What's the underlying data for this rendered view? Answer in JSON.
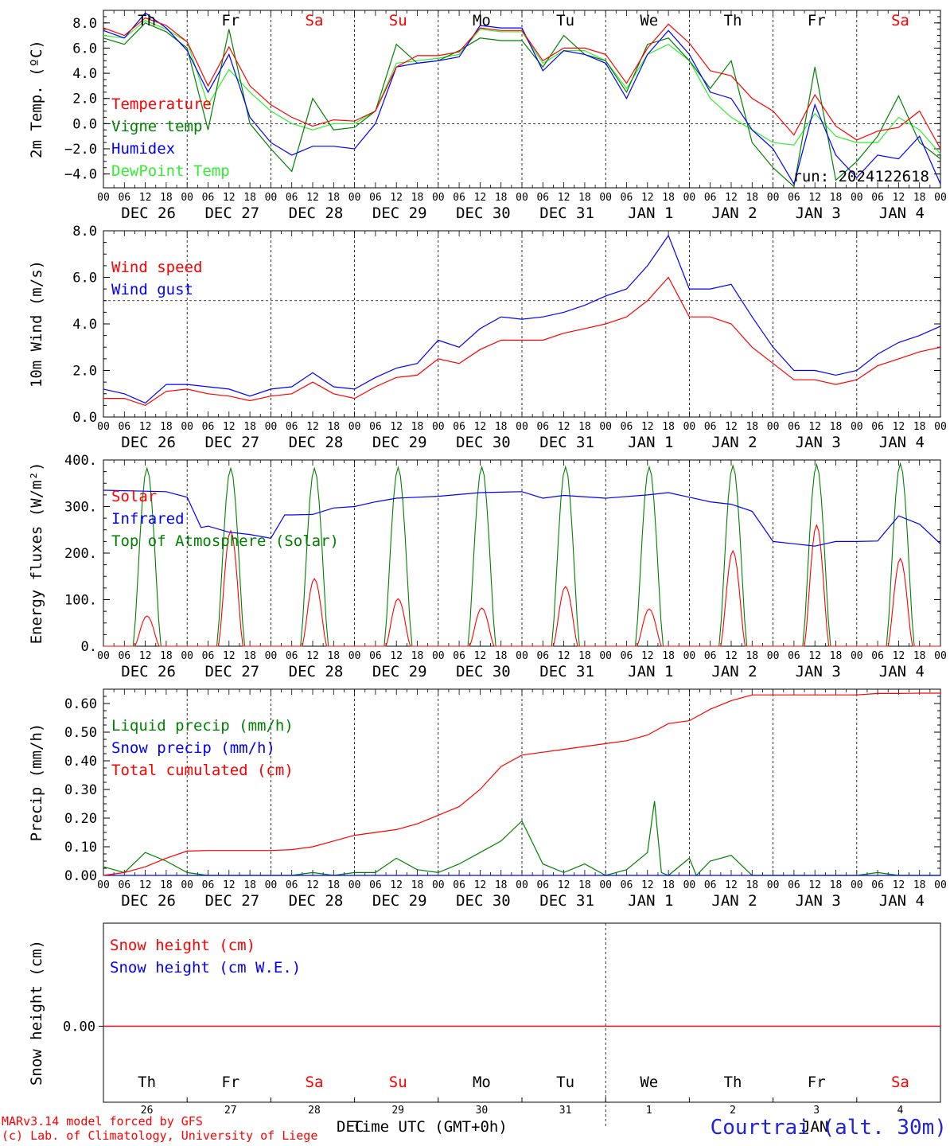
{
  "colors": {
    "red": "#ff0000",
    "green": "#008000",
    "blue": "#0000ff",
    "lightgreen": "#33ee33",
    "black": "#000000"
  },
  "time_axis": {
    "hour_labels": [
      "00",
      "06",
      "12",
      "18"
    ],
    "date_labels": [
      "DEC 26",
      "DEC 27",
      "DEC 28",
      "DEC 29",
      "DEC 30",
      "DEC 31",
      "JAN  1",
      "JAN  2",
      "JAN  3",
      "JAN  4"
    ],
    "weekday_labels": [
      "Th",
      "Fr",
      "Sa",
      "Su",
      "Mo",
      "Tu",
      "We",
      "Th",
      "Fr",
      "Sa"
    ],
    "weekend_color_indices": [
      2,
      3,
      9
    ],
    "day_numbers": [
      "26",
      "27",
      "28",
      "29",
      "30",
      "31",
      "1",
      "2",
      "3",
      "4"
    ]
  },
  "footer": {
    "model_line": "MARv3.14 model forced by GFS",
    "credit_line": "(c) Lab. of Climatology, University of Liege",
    "xlabel": "Time UTC (GMT+0h)",
    "month_dec": "DEC",
    "month_jan": "JAN",
    "station": "Courtrai (alt. 30m)"
  },
  "chart_data": [
    {
      "type": "line",
      "ylabel": "2m Temp. (ºC)",
      "yticks": [
        "8.0",
        "6.0",
        "4.0",
        "2.0",
        "0.0",
        "−2.0",
        "−4.0"
      ],
      "ylim": [
        -5.1,
        9.0
      ],
      "run_label": "run: 2024122618",
      "reference_line": 0,
      "x_unit": "hours since Dec 26 00 UTC",
      "series": [
        {
          "name": "Temperature",
          "color": "red",
          "x": [
            0,
            6,
            12,
            18,
            24,
            30,
            36,
            42,
            48,
            54,
            60,
            66,
            72,
            78,
            84,
            90,
            96,
            102,
            108,
            114,
            120,
            126,
            132,
            138,
            144,
            150,
            156,
            162,
            168,
            174,
            180,
            186,
            192,
            198,
            204,
            210,
            216,
            222,
            228,
            234,
            240
          ],
          "y": [
            7.6,
            7.0,
            8.4,
            7.8,
            6.5,
            3.0,
            6.1,
            3.0,
            1.5,
            0.5,
            -0.2,
            0.3,
            0.2,
            1.0,
            4.5,
            5.4,
            5.4,
            5.7,
            7.6,
            7.4,
            7.4,
            5.0,
            6.0,
            6.0,
            5.5,
            3.2,
            6.0,
            7.9,
            6.4,
            4.2,
            3.8,
            2.0,
            1.0,
            -0.9,
            2.3,
            -0.2,
            -1.3,
            -0.6,
            -0.3,
            1.0,
            -2.0
          ]
        },
        {
          "name": "Vigne temp",
          "color": "green",
          "x": [
            0,
            6,
            12,
            18,
            24,
            30,
            36,
            42,
            48,
            54,
            60,
            66,
            72,
            78,
            84,
            90,
            96,
            102,
            108,
            114,
            120,
            126,
            132,
            138,
            144,
            150,
            156,
            162,
            168,
            174,
            180,
            186,
            192,
            198,
            204,
            210,
            216,
            222,
            228,
            234,
            240
          ],
          "y": [
            6.8,
            6.3,
            8.0,
            7.3,
            6.0,
            -0.5,
            7.5,
            0.0,
            -2.0,
            -3.8,
            2.0,
            -0.5,
            -0.3,
            1.0,
            6.3,
            4.8,
            5.0,
            5.8,
            6.8,
            6.6,
            6.6,
            4.5,
            7.0,
            5.5,
            5.0,
            2.5,
            6.3,
            6.8,
            5.0,
            2.8,
            5.0,
            -1.5,
            -3.5,
            -5.0,
            4.5,
            -4.5,
            -3.0,
            -1.0,
            2.2,
            -1.5,
            -2.8
          ]
        },
        {
          "name": "Humidex",
          "color": "blue",
          "x": [
            0,
            6,
            12,
            18,
            24,
            30,
            36,
            42,
            48,
            54,
            60,
            66,
            72,
            78,
            84,
            90,
            96,
            102,
            108,
            114,
            120,
            126,
            132,
            138,
            144,
            150,
            156,
            162,
            168,
            174,
            180,
            186,
            192,
            198,
            204,
            210,
            216,
            222,
            228,
            234,
            240
          ],
          "y": [
            7.4,
            6.8,
            8.8,
            7.6,
            5.8,
            2.5,
            5.5,
            0.5,
            -1.5,
            -2.5,
            -1.8,
            -1.8,
            -2.0,
            0.0,
            4.5,
            4.8,
            5.0,
            5.3,
            7.8,
            7.6,
            7.6,
            4.2,
            5.8,
            5.5,
            4.8,
            2.0,
            5.5,
            7.4,
            5.5,
            2.5,
            2.0,
            -0.5,
            -2.0,
            -4.8,
            1.5,
            -2.5,
            -4.3,
            -2.5,
            -2.8,
            -1.0,
            -4.8
          ]
        },
        {
          "name": "DewPoint Temp",
          "color": "lightgreen",
          "x": [
            0,
            6,
            12,
            18,
            24,
            30,
            36,
            42,
            48,
            54,
            60,
            66,
            72,
            78,
            84,
            90,
            96,
            102,
            108,
            114,
            120,
            126,
            132,
            138,
            144,
            150,
            156,
            162,
            168,
            174,
            180,
            186,
            192,
            198,
            204,
            210,
            216,
            222,
            228,
            234,
            240
          ],
          "y": [
            7.0,
            6.8,
            8.2,
            7.5,
            6.5,
            1.5,
            4.3,
            2.5,
            1.0,
            0.0,
            -0.5,
            0.0,
            0.0,
            1.0,
            4.8,
            5.0,
            5.2,
            5.5,
            7.5,
            7.3,
            7.3,
            4.8,
            5.8,
            5.8,
            5.0,
            2.8,
            5.5,
            6.3,
            5.0,
            2.0,
            0.5,
            -0.5,
            -1.5,
            -1.7,
            0.8,
            -1.0,
            -1.5,
            -1.5,
            0.5,
            -0.5,
            -2.4
          ]
        }
      ]
    },
    {
      "type": "line",
      "ylabel": "10m Wind (m/s)",
      "yticks": [
        "8.0",
        "6.0",
        "4.0",
        "2.0",
        "0.0"
      ],
      "ylim": [
        0,
        8
      ],
      "reference_line": 5,
      "series": [
        {
          "name": "Wind speed",
          "color": "red",
          "x": [
            0,
            6,
            12,
            18,
            24,
            30,
            36,
            42,
            48,
            54,
            60,
            66,
            72,
            78,
            84,
            90,
            96,
            102,
            108,
            114,
            120,
            126,
            132,
            138,
            144,
            150,
            156,
            162,
            168,
            174,
            180,
            186,
            192,
            198,
            204,
            210,
            216,
            222,
            228,
            234,
            240
          ],
          "y": [
            0.8,
            0.8,
            0.5,
            1.1,
            1.2,
            1.0,
            0.9,
            0.7,
            0.9,
            1.0,
            1.5,
            1.0,
            0.8,
            1.3,
            1.7,
            1.8,
            2.5,
            2.3,
            2.9,
            3.3,
            3.3,
            3.3,
            3.6,
            3.8,
            4.0,
            4.3,
            5.0,
            6.0,
            4.3,
            4.3,
            4.0,
            3.0,
            2.3,
            1.6,
            1.6,
            1.4,
            1.6,
            2.2,
            2.5,
            2.8,
            3.0
          ]
        },
        {
          "name": "Wind gust",
          "color": "blue",
          "x": [
            0,
            6,
            12,
            18,
            24,
            30,
            36,
            42,
            48,
            54,
            60,
            66,
            72,
            78,
            84,
            90,
            96,
            102,
            108,
            114,
            120,
            126,
            132,
            138,
            144,
            150,
            156,
            162,
            168,
            174,
            180,
            186,
            192,
            198,
            204,
            210,
            216,
            222,
            228,
            234,
            240
          ],
          "y": [
            1.2,
            1.0,
            0.6,
            1.4,
            1.4,
            1.3,
            1.2,
            0.9,
            1.2,
            1.3,
            1.9,
            1.3,
            1.2,
            1.7,
            2.1,
            2.3,
            3.3,
            3.0,
            3.8,
            4.3,
            4.2,
            4.3,
            4.5,
            4.8,
            5.2,
            5.5,
            6.5,
            7.8,
            5.5,
            5.5,
            5.7,
            4.3,
            3.0,
            2.0,
            2.0,
            1.8,
            2.0,
            2.7,
            3.2,
            3.5,
            3.9
          ]
        }
      ]
    },
    {
      "type": "line",
      "ylabel": "Energy fluxes (W/m²)",
      "yticks": [
        "400.",
        "300.",
        "200.",
        "100.",
        "0."
      ],
      "ylim": [
        0,
        400
      ],
      "series": [
        {
          "name": "Solar",
          "color": "red",
          "peaks": [
            65,
            248,
            145,
            102,
            82,
            128,
            80,
            205,
            260,
            188
          ]
        },
        {
          "name": "Infrared",
          "color": "blue",
          "x": [
            0,
            6,
            12,
            18,
            24,
            28,
            30,
            36,
            42,
            48,
            52,
            54,
            60,
            66,
            72,
            78,
            84,
            96,
            108,
            120,
            126,
            132,
            144,
            156,
            162,
            168,
            174,
            180,
            186,
            192,
            198,
            204,
            210,
            216,
            222,
            228,
            234,
            240
          ],
          "y": [
            335,
            334,
            333,
            332,
            320,
            255,
            258,
            245,
            240,
            232,
            282,
            282,
            283,
            297,
            300,
            310,
            318,
            322,
            330,
            332,
            318,
            324,
            318,
            325,
            330,
            320,
            310,
            305,
            290,
            225,
            220,
            215,
            225,
            225,
            226,
            280,
            262,
            220
          ]
        },
        {
          "name": "Top of Atmosphere (Solar)",
          "color": "green",
          "peaks": [
            382,
            382,
            382,
            384,
            385,
            385,
            385,
            388,
            390,
            392
          ]
        }
      ]
    },
    {
      "type": "line",
      "ylabel": "Precip (mm/h)",
      "yticks": [
        "0.60",
        "0.50",
        "0.40",
        "0.30",
        "0.20",
        "0.10",
        "0.00"
      ],
      "ylim": [
        0,
        0.65
      ],
      "series": [
        {
          "name": "Liquid precip (mm/h)",
          "color": "green",
          "x": [
            0,
            6,
            12,
            18,
            24,
            30,
            36,
            42,
            48,
            54,
            60,
            66,
            72,
            78,
            84,
            90,
            96,
            102,
            108,
            114,
            120,
            126,
            132,
            138,
            144,
            150,
            156,
            158,
            160,
            162,
            168,
            170,
            174,
            180,
            186,
            192,
            198,
            204,
            210,
            216,
            222,
            228,
            234,
            240
          ],
          "y": [
            0.03,
            0.01,
            0.08,
            0.05,
            0.01,
            0.0,
            0.0,
            0.0,
            0.0,
            0.0,
            0.01,
            0.0,
            0.01,
            0.01,
            0.06,
            0.02,
            0.01,
            0.04,
            0.08,
            0.12,
            0.19,
            0.04,
            0.01,
            0.04,
            0.0,
            0.02,
            0.08,
            0.26,
            0.01,
            0.0,
            0.06,
            0.0,
            0.05,
            0.07,
            0.0,
            0.0,
            0.0,
            0.0,
            0.0,
            0.0,
            0.01,
            0.0,
            0.0,
            0.0
          ]
        },
        {
          "name": "Snow precip (mm/h)",
          "color": "blue",
          "x": [
            0,
            240
          ],
          "y": [
            0,
            0
          ]
        },
        {
          "name": "Total cumulated (cm)",
          "color": "red",
          "x": [
            0,
            6,
            12,
            18,
            24,
            30,
            36,
            42,
            48,
            54,
            60,
            66,
            72,
            78,
            84,
            90,
            96,
            102,
            108,
            114,
            120,
            126,
            132,
            138,
            144,
            150,
            156,
            162,
            168,
            174,
            180,
            186,
            192,
            198,
            204,
            210,
            216,
            222,
            228,
            234,
            240
          ],
          "y": [
            0.0,
            0.01,
            0.03,
            0.06,
            0.085,
            0.087,
            0.087,
            0.087,
            0.087,
            0.09,
            0.1,
            0.12,
            0.14,
            0.15,
            0.16,
            0.18,
            0.21,
            0.24,
            0.3,
            0.38,
            0.42,
            0.43,
            0.44,
            0.45,
            0.46,
            0.47,
            0.49,
            0.53,
            0.54,
            0.58,
            0.61,
            0.63,
            0.63,
            0.63,
            0.63,
            0.63,
            0.63,
            0.635,
            0.635,
            0.636,
            0.636
          ]
        }
      ]
    },
    {
      "type": "line",
      "ylabel": "Snow height (cm)",
      "yticks": [
        "0.00"
      ],
      "series": [
        {
          "name": "Snow height (cm)",
          "color": "red",
          "x": [
            0,
            240
          ],
          "y": [
            0,
            0
          ]
        },
        {
          "name": "Snow height (cm W.E.)",
          "color": "blue",
          "x": [
            0,
            240
          ],
          "y": [
            0,
            0
          ]
        }
      ]
    }
  ]
}
